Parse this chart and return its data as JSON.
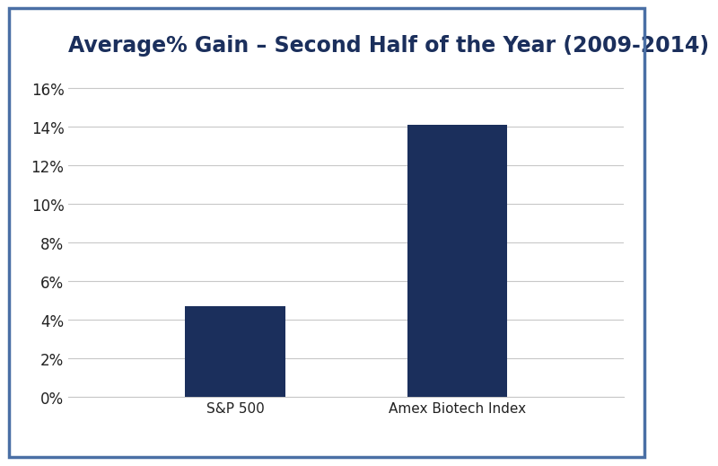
{
  "title": "Average% Gain – Second Half of the Year (2009-2014)",
  "categories": [
    "S&P 500",
    "Amex Biotech Index"
  ],
  "values": [
    4.7,
    14.1
  ],
  "bar_color": "#1b2f5c",
  "bar_width": 0.18,
  "ylim": [
    0,
    0.17
  ],
  "yticks": [
    0,
    0.02,
    0.04,
    0.06,
    0.08,
    0.1,
    0.12,
    0.14,
    0.16
  ],
  "ytick_labels": [
    "0%",
    "2%",
    "4%",
    "6%",
    "8%",
    "10%",
    "12%",
    "14%",
    "16%"
  ],
  "background_color": "#ffffff",
  "outer_border_color": "#4a6fa5",
  "title_color": "#1b2f5c",
  "title_fontsize": 17,
  "tick_label_fontsize": 12,
  "category_fontsize": 11,
  "grid_color": "#c8c8c8",
  "bar_positions": [
    0.3,
    0.7
  ]
}
